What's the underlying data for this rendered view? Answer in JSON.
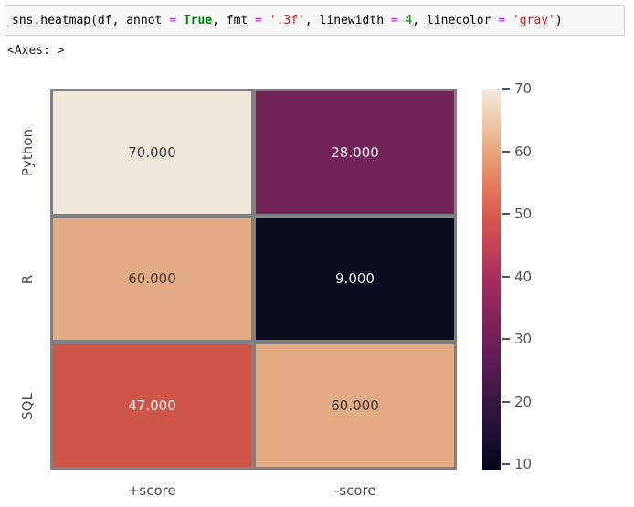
{
  "notebook": {
    "output_text": "<Axes: >",
    "code_tokens": [
      {
        "t": "sns.heatmap(df, annot ",
        "c": "plain"
      },
      {
        "t": "=",
        "c": "op"
      },
      {
        "t": " ",
        "c": "plain"
      },
      {
        "t": "True",
        "c": "kw"
      },
      {
        "t": ", fmt ",
        "c": "plain"
      },
      {
        "t": "=",
        "c": "op"
      },
      {
        "t": " ",
        "c": "plain"
      },
      {
        "t": "'.3f'",
        "c": "str"
      },
      {
        "t": ", linewidth ",
        "c": "plain"
      },
      {
        "t": "=",
        "c": "op"
      },
      {
        "t": " ",
        "c": "plain"
      },
      {
        "t": "4",
        "c": "num"
      },
      {
        "t": ", linecolor ",
        "c": "plain"
      },
      {
        "t": "=",
        "c": "op"
      },
      {
        "t": " ",
        "c": "plain"
      },
      {
        "t": "'gray'",
        "c": "str"
      },
      {
        "t": ")",
        "c": "plain"
      }
    ]
  },
  "syntax_colors": {
    "plain": "#000000",
    "op": "#AA22FF",
    "kw": "#008000",
    "str": "#BA2121",
    "num": "#008000"
  },
  "chart_data": {
    "type": "heatmap",
    "rows": [
      "Python",
      "R",
      "SQL"
    ],
    "columns": [
      "+score",
      "-score"
    ],
    "values": [
      [
        70.0,
        28.0
      ],
      [
        60.0,
        9.0
      ],
      [
        47.0,
        60.0
      ]
    ],
    "annotations": [
      [
        "70.000",
        "28.000"
      ],
      [
        "60.000",
        "9.000"
      ],
      [
        "47.000",
        "60.000"
      ]
    ],
    "vmin": 9,
    "vmax": 70,
    "colormap": "rocket",
    "colorbar_ticks": [
      10,
      20,
      30,
      40,
      50,
      60,
      70
    ],
    "grid_line_color": "#808080",
    "cell_colors": [
      [
        "#f0e7db",
        "#702457"
      ],
      [
        "#e3ab84",
        "#0b0c20"
      ],
      [
        "#cd5649",
        "#e3ab84"
      ]
    ],
    "annot_colors": [
      [
        "#3a3a3a",
        "#f0f0f0"
      ],
      [
        "#3a3a3a",
        "#f0f0f0"
      ],
      [
        "#f5f5f5",
        "#3a3a3a"
      ]
    ],
    "colorbar_gradient": [
      {
        "pos": 0,
        "color": "#04051c"
      },
      {
        "pos": 8,
        "color": "#190f33"
      },
      {
        "pos": 18,
        "color": "#37183f"
      },
      {
        "pos": 26,
        "color": "#531b50"
      },
      {
        "pos": 34,
        "color": "#6f2059"
      },
      {
        "pos": 43,
        "color": "#8d255c"
      },
      {
        "pos": 51,
        "color": "#ac2f5e"
      },
      {
        "pos": 59,
        "color": "#c44355"
      },
      {
        "pos": 67,
        "color": "#da5b4f"
      },
      {
        "pos": 75,
        "color": "#e37b5f"
      },
      {
        "pos": 84,
        "color": "#e8a87d"
      },
      {
        "pos": 92,
        "color": "#eecbae"
      },
      {
        "pos": 100,
        "color": "#f4ebdf"
      }
    ],
    "tick_label_color": "#555555",
    "axis_label_color": "#4d4d4d"
  }
}
